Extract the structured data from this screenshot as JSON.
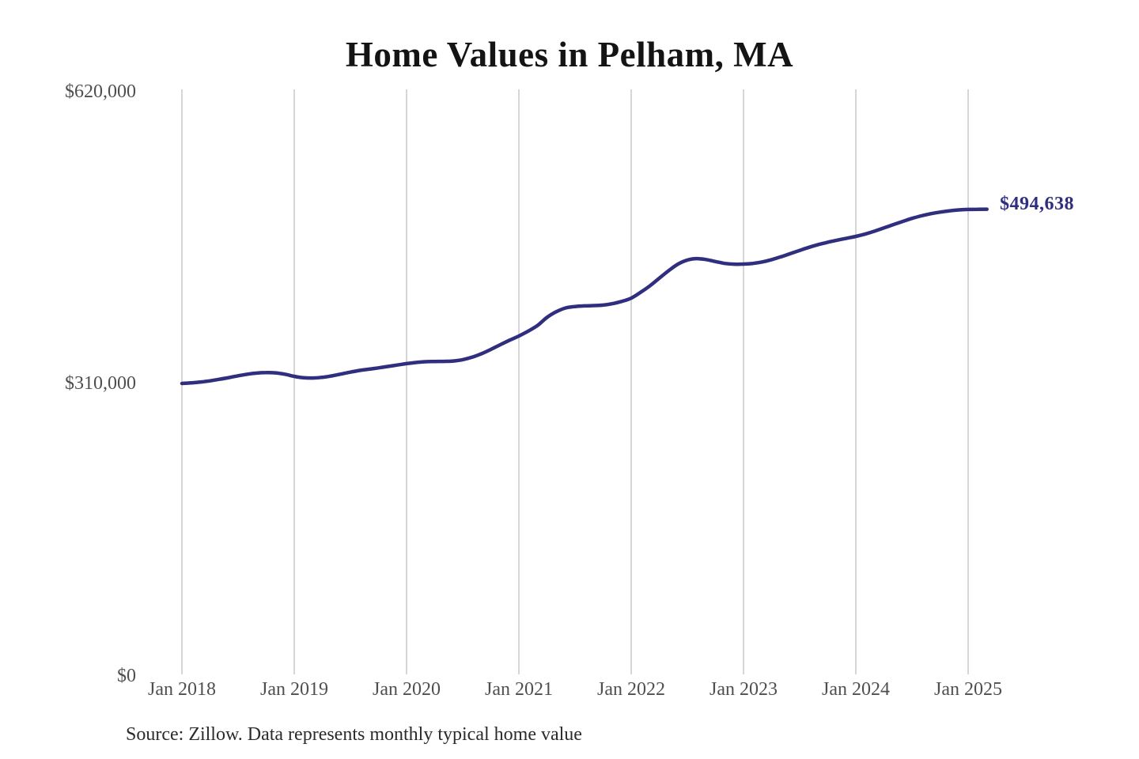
{
  "title": "Home Values in Pelham, MA",
  "source_note": "Source: Zillow. Data represents monthly typical home value",
  "latest_value_label": "$494,638",
  "colors": {
    "line": "#302e7f",
    "grid": "#c9c9c9",
    "axis_text": "#4f4f4f",
    "title_text": "#141414",
    "source_text": "#2b2b2b",
    "background": "#ffffff"
  },
  "y_axis": {
    "ticks": [
      {
        "label": "$620,000",
        "value": 620000
      },
      {
        "label": "$310,000",
        "value": 310000
      },
      {
        "label": "$0",
        "value": 0
      }
    ]
  },
  "chart_data": {
    "type": "line",
    "title": "Home Values in Pelham, MA",
    "series_name": "Monthly typical home value",
    "unit": "USD",
    "x_start": "2018-01",
    "x_end": "2025-03",
    "x_cadence": "monthly",
    "ylim": [
      0,
      620000
    ],
    "y_tick_values": [
      0,
      310000,
      620000
    ],
    "x_tick_labels": [
      "Jan 2018",
      "Jan 2019",
      "Jan 2020",
      "Jan 2021",
      "Jan 2022",
      "Jan 2023",
      "Jan 2024",
      "Jan 2025"
    ],
    "grid": "vertical-yearly",
    "legend": "none",
    "latest_value": 494638,
    "values": [
      310000,
      310600,
      311500,
      312800,
      314400,
      316200,
      318100,
      319800,
      321000,
      321500,
      321200,
      319800,
      317500,
      316000,
      315800,
      316500,
      318000,
      320000,
      322000,
      323800,
      325200,
      326500,
      328000,
      329500,
      331000,
      332200,
      333000,
      333300,
      333400,
      333800,
      335200,
      337800,
      341500,
      346000,
      351000,
      355800,
      360300,
      365500,
      371500,
      380000,
      386000,
      390000,
      391500,
      392200,
      392500,
      393000,
      394500,
      397000,
      400400,
      406500,
      413500,
      421500,
      429500,
      436500,
      440800,
      442300,
      441300,
      439200,
      437200,
      436400,
      436500,
      437200,
      438800,
      441200,
      444200,
      447600,
      451000,
      454300,
      457200,
      459600,
      461800,
      463800,
      465800,
      468300,
      471400,
      474800,
      478300,
      481700,
      484900,
      487600,
      489900,
      491600,
      492900,
      493900,
      494400,
      494600,
      494638
    ]
  }
}
